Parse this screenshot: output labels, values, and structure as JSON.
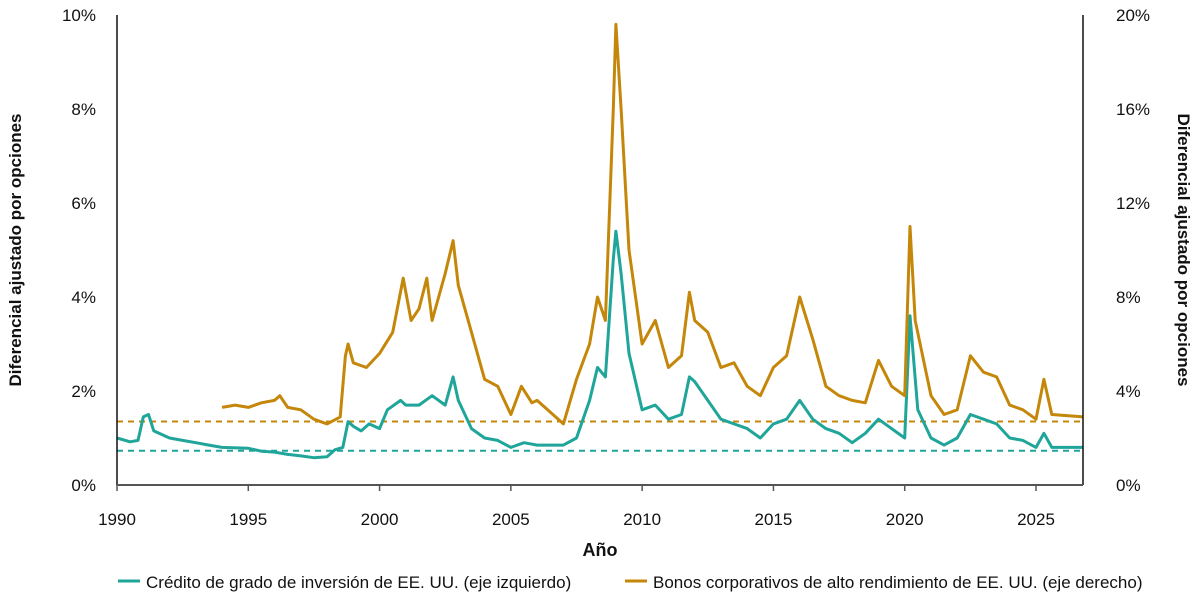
{
  "chart_data": {
    "type": "line",
    "xlabel": "Año",
    "ylabel_left": "Diferencial ajustado por opciones",
    "ylabel_right": "Diferencial ajustado por opciones",
    "xlim": [
      1990,
      2026.8
    ],
    "ylim_left": [
      0,
      10
    ],
    "ylim_right": [
      0,
      20
    ],
    "x_ticks": [
      "1990",
      "1995",
      "2000",
      "2005",
      "2010",
      "2015",
      "2020",
      "2025"
    ],
    "y_ticks_left": [
      "0%",
      "2%",
      "4%",
      "6%",
      "8%",
      "10%"
    ],
    "y_ticks_right": [
      "0%",
      "4%",
      "8%",
      "12%",
      "16%",
      "20%"
    ],
    "legend_position": "bottom",
    "grid": false,
    "series": [
      {
        "name": "Crédito de grado de inversión de EE. UU. (eje izquierdo)",
        "axis": "left",
        "color": "#1fa59a",
        "reference_line": 0.73,
        "x": [
          1990,
          1990.5,
          1990.8,
          1991.0,
          1991.2,
          1991.4,
          1992,
          1992.5,
          1993,
          1993.5,
          1994,
          1995,
          1995.5,
          1996,
          1996.5,
          1997,
          1997.5,
          1998,
          1998.3,
          1998.6,
          1998.8,
          1999,
          1999.3,
          1999.6,
          2000,
          2000.3,
          2000.8,
          2001,
          2001.5,
          2002,
          2002.5,
          2002.8,
          2003,
          2003.5,
          2004,
          2004.5,
          2005,
          2005.5,
          2006,
          2007,
          2007.5,
          2008,
          2008.3,
          2008.6,
          2008.9,
          2009.0,
          2009.2,
          2009.5,
          2010,
          2010.5,
          2011,
          2011.5,
          2011.8,
          2012,
          2012.5,
          2013,
          2013.5,
          2014,
          2014.5,
          2015,
          2015.5,
          2016,
          2016.5,
          2017,
          2017.5,
          2018,
          2018.5,
          2019,
          2019.5,
          2020.0,
          2020.2,
          2020.5,
          2021,
          2021.5,
          2022,
          2022.5,
          2023,
          2023.5,
          2024,
          2024.5,
          2025.0,
          2025.3,
          2025.6,
          2026.8
        ],
        "y": [
          1.0,
          0.92,
          0.95,
          1.45,
          1.5,
          1.15,
          1.0,
          0.95,
          0.9,
          0.85,
          0.8,
          0.78,
          0.72,
          0.7,
          0.65,
          0.62,
          0.58,
          0.6,
          0.75,
          0.8,
          1.35,
          1.25,
          1.15,
          1.3,
          1.2,
          1.6,
          1.8,
          1.7,
          1.7,
          1.9,
          1.7,
          2.3,
          1.8,
          1.2,
          1.0,
          0.95,
          0.8,
          0.9,
          0.85,
          0.85,
          1.0,
          1.8,
          2.5,
          2.3,
          4.8,
          5.4,
          4.5,
          2.8,
          1.6,
          1.7,
          1.4,
          1.5,
          2.3,
          2.2,
          1.8,
          1.4,
          1.3,
          1.2,
          1.0,
          1.3,
          1.4,
          1.8,
          1.4,
          1.2,
          1.1,
          0.9,
          1.1,
          1.4,
          1.2,
          1.0,
          3.6,
          1.6,
          1.0,
          0.85,
          1.0,
          1.5,
          1.4,
          1.3,
          1.0,
          0.95,
          0.8,
          1.1,
          0.8,
          0.8
        ]
      },
      {
        "name": "Bonos corporativos de alto rendimiento de EE. UU. (eje derecho)",
        "axis": "right",
        "color": "#c4870a",
        "reference_line": 2.7,
        "x": [
          1994.0,
          1994.5,
          1995,
          1995.5,
          1996,
          1996.2,
          1996.5,
          1997,
          1997.5,
          1998,
          1998.5,
          1998.7,
          1998.8,
          1999,
          1999.5,
          2000,
          2000.5,
          2000.9,
          2001.2,
          2001.5,
          2001.8,
          2002,
          2002.5,
          2002.8,
          2003,
          2003.5,
          2004,
          2004.5,
          2005,
          2005.4,
          2005.8,
          2006,
          2007,
          2007.5,
          2008,
          2008.3,
          2008.6,
          2008.9,
          2009.0,
          2009.2,
          2009.5,
          2010,
          2010.5,
          2011,
          2011.5,
          2011.8,
          2012,
          2012.5,
          2013,
          2013.5,
          2014,
          2014.5,
          2015,
          2015.5,
          2016,
          2016.5,
          2017,
          2017.5,
          2018,
          2018.5,
          2019,
          2019.5,
          2020.0,
          2020.2,
          2020.4,
          2021,
          2021.5,
          2022,
          2022.5,
          2023,
          2023.5,
          2024,
          2024.5,
          2025.0,
          2025.3,
          2025.6,
          2026.8
        ],
        "y": [
          3.3,
          3.4,
          3.3,
          3.5,
          3.6,
          3.8,
          3.3,
          3.2,
          2.8,
          2.6,
          2.9,
          5.5,
          6.0,
          5.2,
          5.0,
          5.6,
          6.5,
          8.8,
          7.0,
          7.5,
          8.8,
          7.0,
          9.0,
          10.4,
          8.5,
          6.5,
          4.5,
          4.2,
          3.0,
          4.2,
          3.5,
          3.6,
          2.6,
          4.5,
          6.0,
          8.0,
          7.0,
          16,
          19.6,
          16,
          10,
          6.0,
          7.0,
          5.0,
          5.5,
          8.2,
          7.0,
          6.5,
          5.0,
          5.2,
          4.2,
          3.8,
          5.0,
          5.5,
          8.0,
          6.2,
          4.2,
          3.8,
          3.6,
          3.5,
          5.3,
          4.2,
          3.8,
          11,
          7.0,
          3.8,
          3.0,
          3.2,
          5.5,
          4.8,
          4.6,
          3.4,
          3.2,
          2.8,
          4.5,
          3.0,
          2.9
        ]
      }
    ]
  }
}
